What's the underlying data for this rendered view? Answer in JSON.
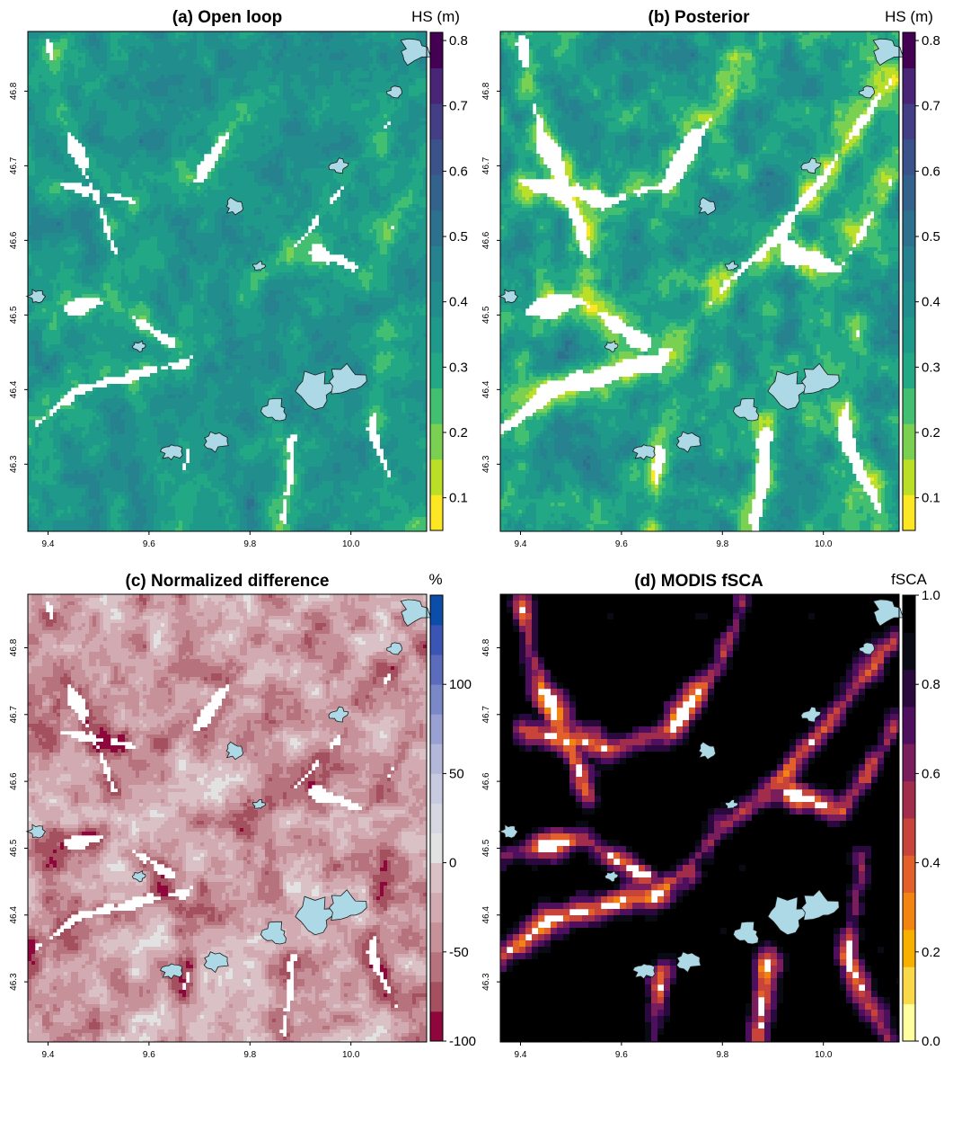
{
  "panels": [
    {
      "id": "a",
      "title": "(a) Open loop",
      "field": "hs_openloop",
      "xticks": [
        "9.4",
        "9.6",
        "9.8",
        "10.0"
      ],
      "yticks": [
        "46.3",
        "46.4",
        "46.5",
        "46.6",
        "46.7",
        "46.8"
      ],
      "colorbar": {
        "title": "HS (m)",
        "ticks": [
          "0.1",
          "0.2",
          "0.3",
          "0.4",
          "0.5",
          "0.6",
          "0.7",
          "0.8"
        ],
        "tick_values": [
          0.1,
          0.2,
          0.3,
          0.4,
          0.5,
          0.6,
          0.7,
          0.8
        ],
        "range": [
          0.05,
          0.8125
        ],
        "colors": [
          "#FDE725",
          "#BBDF27",
          "#7AD151",
          "#43BF71",
          "#22A884",
          "#1F9A8A",
          "#218E8D",
          "#26828E",
          "#2D718E",
          "#33638D",
          "#3B528B",
          "#433E85",
          "#482576",
          "#440154"
        ]
      }
    },
    {
      "id": "b",
      "title": "(b) Posterior",
      "field": "hs_posterior",
      "xticks": [
        "9.4",
        "9.6",
        "9.8",
        "10.0"
      ],
      "yticks": [
        "46.3",
        "46.4",
        "46.5",
        "46.6",
        "46.7",
        "46.8"
      ],
      "colorbar": {
        "title": "HS (m)",
        "ticks": [
          "0.1",
          "0.2",
          "0.3",
          "0.4",
          "0.5",
          "0.6",
          "0.7",
          "0.8"
        ],
        "tick_values": [
          0.1,
          0.2,
          0.3,
          0.4,
          0.5,
          0.6,
          0.7,
          0.8
        ],
        "range": [
          0.05,
          0.8125
        ],
        "colors": [
          "#FDE725",
          "#BBDF27",
          "#7AD151",
          "#43BF71",
          "#22A884",
          "#1F9A8A",
          "#218E8D",
          "#26828E",
          "#2D718E",
          "#33638D",
          "#3B528B",
          "#433E85",
          "#482576",
          "#440154"
        ]
      }
    },
    {
      "id": "c",
      "title": "(c) Normalized difference",
      "field": "norm_diff",
      "xticks": [
        "9.4",
        "9.6",
        "9.8",
        "10.0"
      ],
      "yticks": [
        "46.3",
        "46.4",
        "46.5",
        "46.6",
        "46.7",
        "46.8"
      ],
      "colorbar": {
        "title": "%",
        "ticks": [
          "-100",
          "-50",
          "0",
          "50",
          "100"
        ],
        "tick_values": [
          -100,
          -50,
          0,
          50,
          100
        ],
        "range": [
          -100,
          150
        ],
        "colors": [
          "#8E063B",
          "#A5505E",
          "#B7737D",
          "#C69199",
          "#D1ABB1",
          "#DAC1C5",
          "#E2E2E2",
          "#D7D7E2",
          "#C8CAE0",
          "#B3B8DB",
          "#98A1D2",
          "#7B88C8",
          "#5B6CBD",
          "#3A55B3",
          "#0B4DA8"
        ]
      }
    },
    {
      "id": "d",
      "title": "(d) MODIS fSCA",
      "field": "fsca",
      "xticks": [
        "9.4",
        "9.6",
        "9.8",
        "10.0"
      ],
      "yticks": [
        "46.3",
        "46.4",
        "46.5",
        "46.6",
        "46.7",
        "46.8"
      ],
      "colorbar": {
        "title": "fSCA",
        "ticks": [
          "0.0",
          "0.2",
          "0.4",
          "0.6",
          "0.8",
          "1.0"
        ],
        "tick_values": [
          0.0,
          0.2,
          0.4,
          0.6,
          0.8,
          1.0
        ],
        "range": [
          0.0,
          1.0
        ],
        "colors": [
          "#FFFFA0",
          "#F9D949",
          "#F7B000",
          "#F48412",
          "#E3602A",
          "#C8443A",
          "#A12C4C",
          "#7A1D5C",
          "#4E105E",
          "#2A0A3E",
          "#0A0A14",
          "#000000"
        ]
      }
    }
  ],
  "colors": {
    "glacier": "#ADD8E6",
    "background": "#FFFFFF"
  },
  "chart_data": [
    {
      "type": "heatmap",
      "title": "(a) Open loop",
      "xlabel": "",
      "ylabel": "",
      "xlim": [
        9.36,
        10.15
      ],
      "ylim": [
        46.21,
        46.88
      ],
      "xticks": [
        9.4,
        9.6,
        9.8,
        10.0
      ],
      "yticks": [
        46.3,
        46.4,
        46.5,
        46.6,
        46.7,
        46.8
      ],
      "value_label": "HS (m)",
      "value_range": [
        0.05,
        0.8125
      ],
      "typical_value": 0.38,
      "valley_value": 0.2
    },
    {
      "type": "heatmap",
      "title": "(b) Posterior",
      "xlabel": "",
      "ylabel": "",
      "xlim": [
        9.36,
        10.15
      ],
      "ylim": [
        46.21,
        46.88
      ],
      "xticks": [
        9.4,
        9.6,
        9.8,
        10.0
      ],
      "yticks": [
        46.3,
        46.4,
        46.5,
        46.6,
        46.7,
        46.8
      ],
      "value_label": "HS (m)",
      "value_range": [
        0.05,
        0.8125
      ],
      "typical_value": 0.35,
      "valley_value": 0.08
    },
    {
      "type": "heatmap",
      "title": "(c) Normalized difference",
      "xlabel": "",
      "ylabel": "",
      "xlim": [
        9.36,
        10.15
      ],
      "ylim": [
        46.21,
        46.88
      ],
      "xticks": [
        9.4,
        9.6,
        9.8,
        10.0
      ],
      "yticks": [
        46.3,
        46.4,
        46.5,
        46.6,
        46.7,
        46.8
      ],
      "value_label": "%",
      "value_range": [
        -100,
        150
      ],
      "typical_value": -30,
      "valley_value": -80
    },
    {
      "type": "heatmap",
      "title": "(d) MODIS fSCA",
      "xlabel": "",
      "ylabel": "",
      "xlim": [
        9.36,
        10.15
      ],
      "ylim": [
        46.21,
        46.88
      ],
      "xticks": [
        9.4,
        9.6,
        9.8,
        10.0
      ],
      "yticks": [
        46.3,
        46.4,
        46.5,
        46.6,
        46.7,
        46.8
      ],
      "value_label": "fSCA",
      "value_range": [
        0.0,
        1.0
      ],
      "typical_value": 1.0,
      "valley_value": 0.35
    }
  ]
}
